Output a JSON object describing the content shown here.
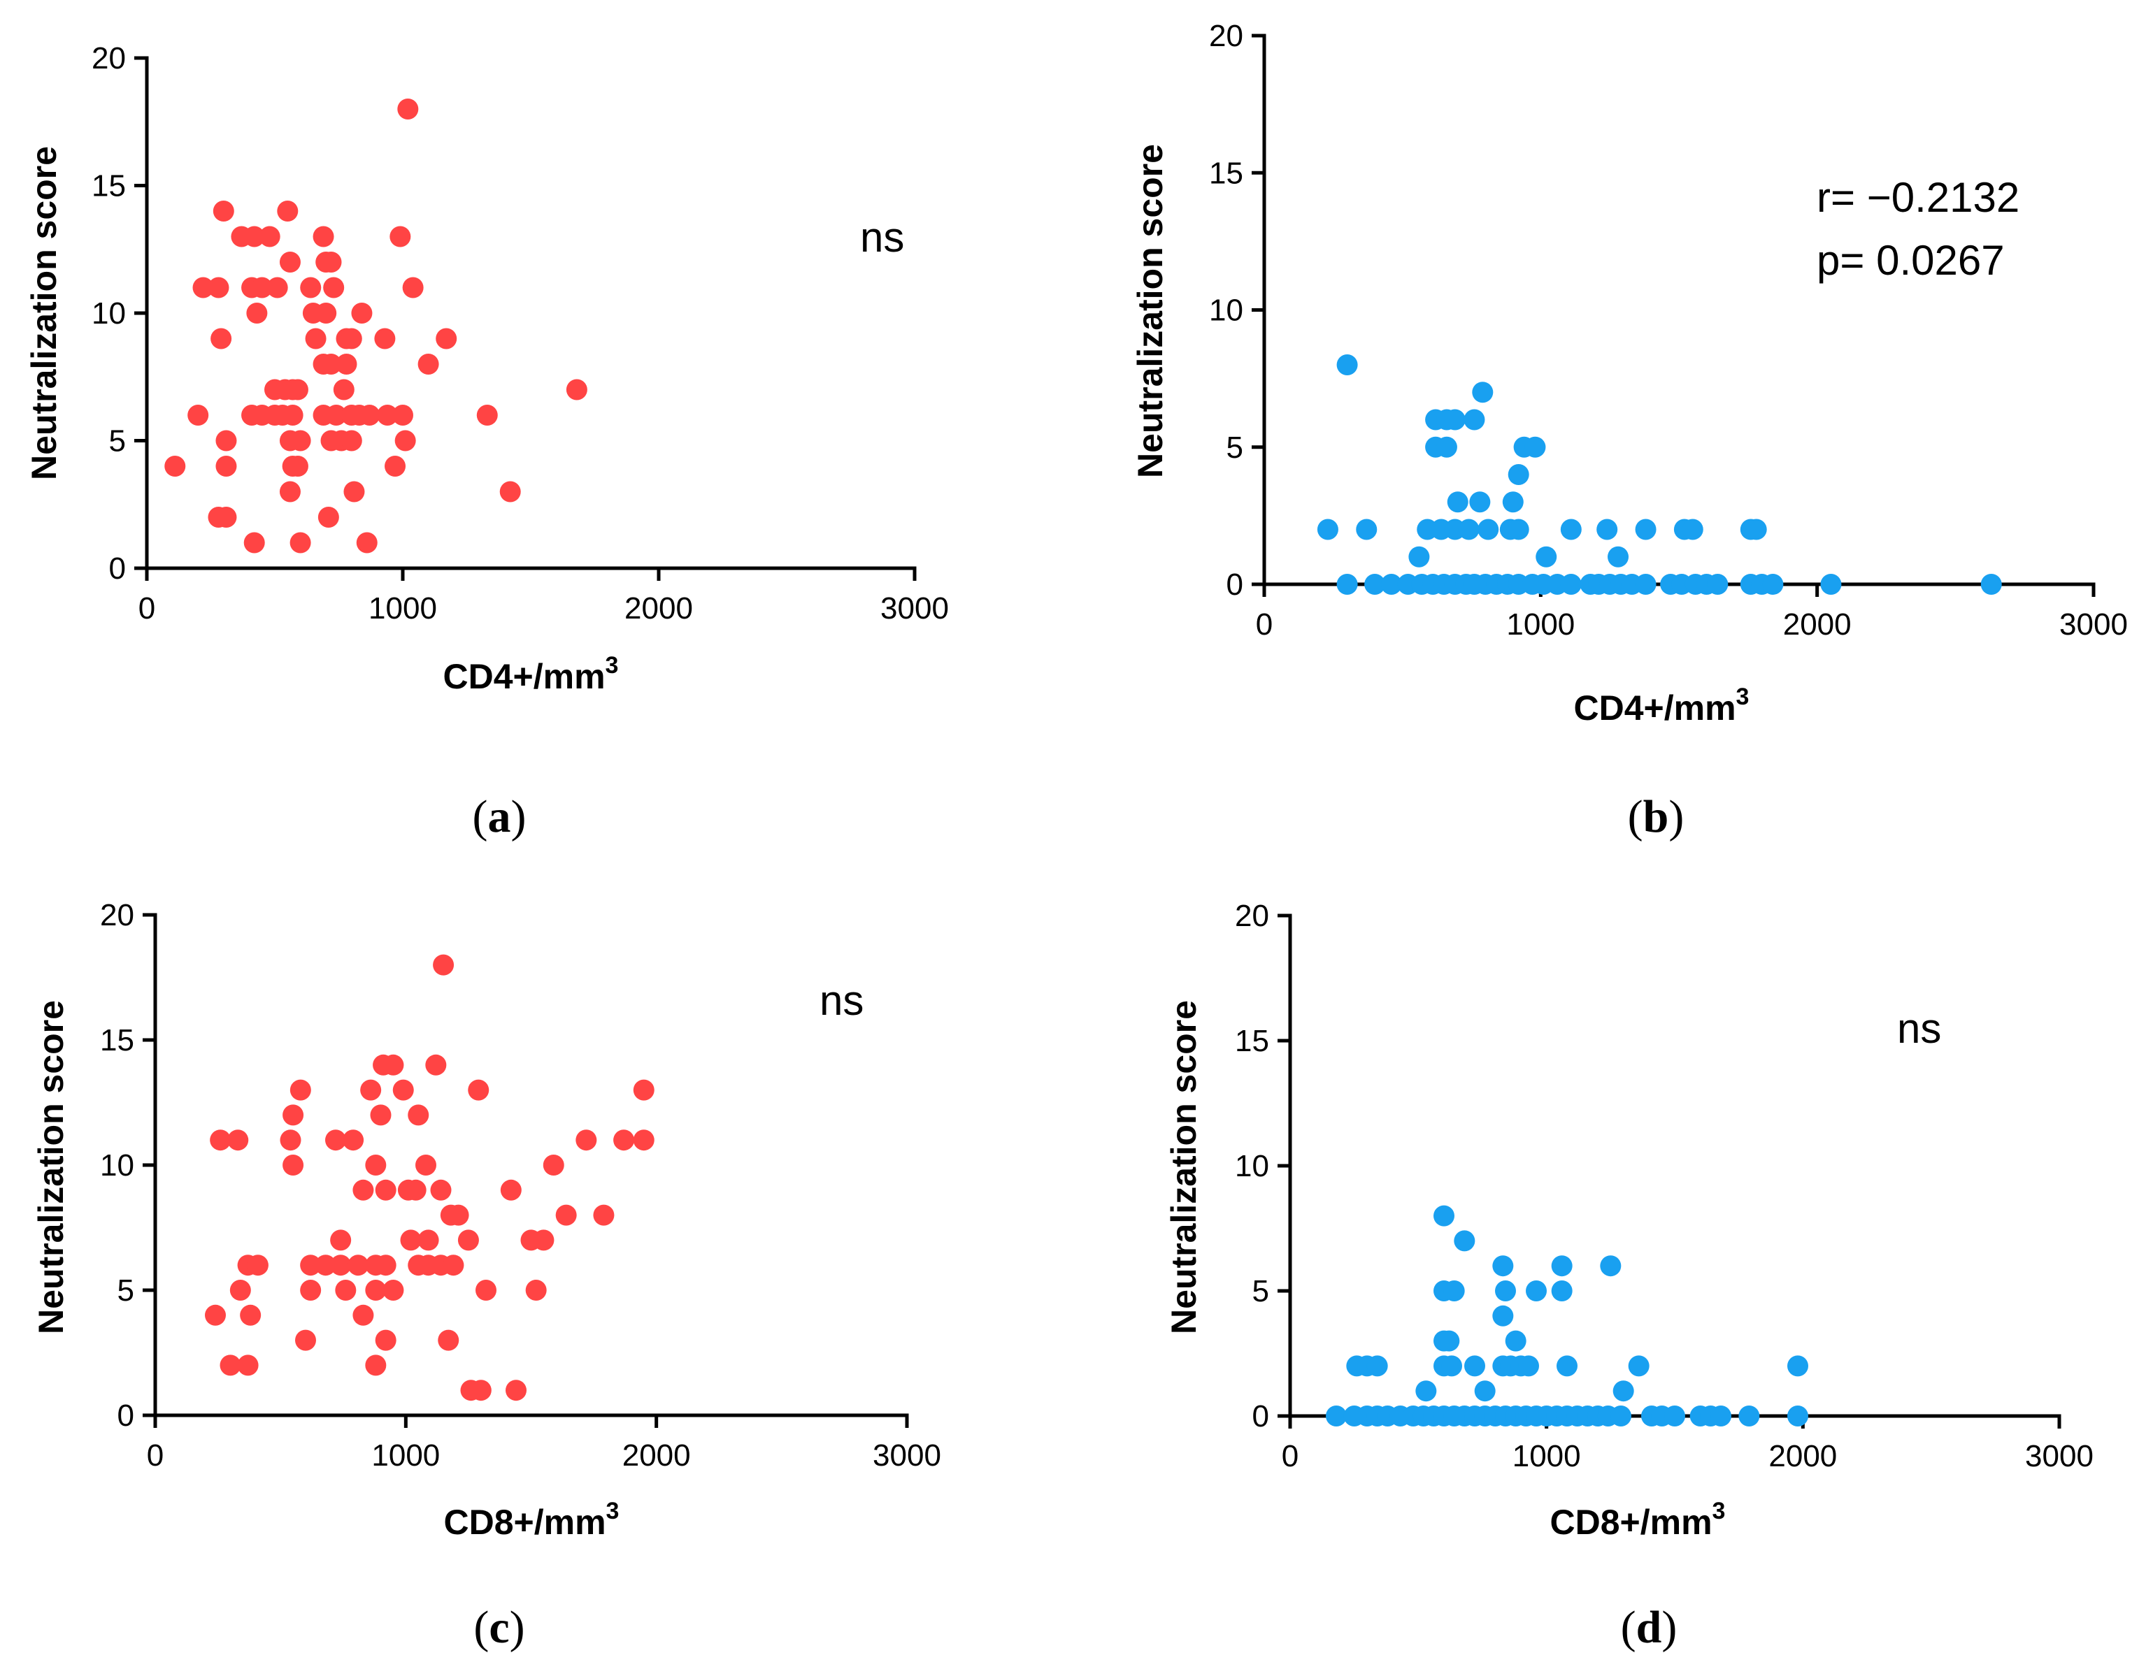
{
  "colors": {
    "red": "#ff4444",
    "blue": "#19a0f0"
  },
  "chart_data": [
    {
      "id": "a",
      "type": "scatter",
      "panel_label": "a",
      "color": "#ff4444",
      "xlabel": "CD4+/mm",
      "xlabel_sup": "3",
      "ylabel": "Neutralization score",
      "xlim": [
        0,
        3000
      ],
      "ylim": [
        0,
        20
      ],
      "xticks": [
        "0",
        "1000",
        "2000",
        "3000"
      ],
      "yticks": [
        "0",
        "5",
        "10",
        "15",
        "20"
      ],
      "annotation": [
        "ns"
      ],
      "points": [
        [
          1020,
          18
        ],
        [
          300,
          14
        ],
        [
          550,
          14
        ],
        [
          370,
          13
        ],
        [
          420,
          13
        ],
        [
          480,
          13
        ],
        [
          690,
          13
        ],
        [
          990,
          13
        ],
        [
          220,
          11
        ],
        [
          280,
          11
        ],
        [
          410,
          11
        ],
        [
          450,
          11
        ],
        [
          510,
          11
        ],
        [
          640,
          11
        ],
        [
          730,
          11
        ],
        [
          1040,
          11
        ],
        [
          560,
          12
        ],
        [
          700,
          12
        ],
        [
          720,
          12
        ],
        [
          430,
          10
        ],
        [
          650,
          10
        ],
        [
          700,
          10
        ],
        [
          840,
          10
        ],
        [
          290,
          9
        ],
        [
          660,
          9
        ],
        [
          780,
          9
        ],
        [
          800,
          9
        ],
        [
          930,
          9
        ],
        [
          1170,
          9
        ],
        [
          690,
          8
        ],
        [
          720,
          8
        ],
        [
          780,
          8
        ],
        [
          1100,
          8
        ],
        [
          1680,
          7
        ],
        [
          500,
          7
        ],
        [
          540,
          7
        ],
        [
          570,
          7
        ],
        [
          590,
          7
        ],
        [
          770,
          7
        ],
        [
          200,
          6
        ],
        [
          410,
          6
        ],
        [
          450,
          6
        ],
        [
          500,
          6
        ],
        [
          530,
          6
        ],
        [
          570,
          6
        ],
        [
          690,
          6
        ],
        [
          740,
          6
        ],
        [
          800,
          6
        ],
        [
          830,
          6
        ],
        [
          870,
          6
        ],
        [
          940,
          6
        ],
        [
          1000,
          6
        ],
        [
          1330,
          6
        ],
        [
          310,
          5
        ],
        [
          560,
          5
        ],
        [
          600,
          5
        ],
        [
          720,
          5
        ],
        [
          760,
          5
        ],
        [
          800,
          5
        ],
        [
          1010,
          5
        ],
        [
          110,
          4
        ],
        [
          310,
          4
        ],
        [
          570,
          4
        ],
        [
          590,
          4
        ],
        [
          970,
          4
        ],
        [
          560,
          3
        ],
        [
          810,
          3
        ],
        [
          1420,
          3
        ],
        [
          280,
          2
        ],
        [
          310,
          2
        ],
        [
          710,
          2
        ],
        [
          420,
          1
        ],
        [
          600,
          1
        ],
        [
          860,
          1
        ]
      ]
    },
    {
      "id": "b",
      "type": "scatter",
      "panel_label": "b",
      "color": "#19a0f0",
      "xlabel": "CD4+/mm",
      "xlabel_sup": "3",
      "ylabel": "Neutralization score",
      "xlim": [
        0,
        3000
      ],
      "ylim": [
        0,
        20
      ],
      "xticks": [
        "0",
        "1000",
        "2000",
        "3000"
      ],
      "yticks": [
        "0",
        "5",
        "10",
        "15",
        "20"
      ],
      "annotation": [
        "r= −0.2132",
        "p= 0.0267"
      ],
      "points": [
        [
          300,
          8
        ],
        [
          790,
          7
        ],
        [
          620,
          6
        ],
        [
          660,
          6
        ],
        [
          690,
          6
        ],
        [
          760,
          6
        ],
        [
          620,
          5
        ],
        [
          660,
          5
        ],
        [
          940,
          5
        ],
        [
          980,
          5
        ],
        [
          920,
          4
        ],
        [
          700,
          3
        ],
        [
          780,
          3
        ],
        [
          900,
          3
        ],
        [
          1280,
          1
        ],
        [
          1020,
          1
        ],
        [
          560,
          1
        ],
        [
          230,
          2
        ],
        [
          370,
          2
        ],
        [
          590,
          2
        ],
        [
          640,
          2
        ],
        [
          690,
          2
        ],
        [
          740,
          2
        ],
        [
          810,
          2
        ],
        [
          890,
          2
        ],
        [
          920,
          2
        ],
        [
          1110,
          2
        ],
        [
          1240,
          2
        ],
        [
          1380,
          2
        ],
        [
          1520,
          2
        ],
        [
          1550,
          2
        ],
        [
          1760,
          2
        ],
        [
          1780,
          2
        ],
        [
          300,
          0
        ],
        [
          400,
          0
        ],
        [
          460,
          0
        ],
        [
          520,
          0
        ],
        [
          570,
          0
        ],
        [
          610,
          0
        ],
        [
          650,
          0
        ],
        [
          690,
          0
        ],
        [
          730,
          0
        ],
        [
          760,
          0
        ],
        [
          800,
          0
        ],
        [
          840,
          0
        ],
        [
          880,
          0
        ],
        [
          920,
          0
        ],
        [
          970,
          0
        ],
        [
          1010,
          0
        ],
        [
          1060,
          0
        ],
        [
          1110,
          0
        ],
        [
          1180,
          0
        ],
        [
          1210,
          0
        ],
        [
          1250,
          0
        ],
        [
          1290,
          0
        ],
        [
          1330,
          0
        ],
        [
          1380,
          0
        ],
        [
          1470,
          0
        ],
        [
          1510,
          0
        ],
        [
          1560,
          0
        ],
        [
          1600,
          0
        ],
        [
          1640,
          0
        ],
        [
          1760,
          0
        ],
        [
          1800,
          0
        ],
        [
          1840,
          0
        ],
        [
          2050,
          0
        ],
        [
          2630,
          0
        ]
      ]
    },
    {
      "id": "c",
      "type": "scatter",
      "panel_label": "c",
      "color": "#ff4444",
      "xlabel": "CD8+/mm",
      "xlabel_sup": "3",
      "ylabel": "Neutralization score",
      "xlim": [
        0,
        3000
      ],
      "ylim": [
        0,
        20
      ],
      "xticks": [
        "0",
        "1000",
        "2000",
        "3000"
      ],
      "yticks": [
        "0",
        "5",
        "10",
        "15",
        "20"
      ],
      "annotation": [
        "ns"
      ],
      "points": [
        [
          1150,
          18
        ],
        [
          910,
          14
        ],
        [
          950,
          14
        ],
        [
          1120,
          14
        ],
        [
          580,
          13
        ],
        [
          860,
          13
        ],
        [
          990,
          13
        ],
        [
          1290,
          13
        ],
        [
          1950,
          13
        ],
        [
          550,
          12
        ],
        [
          900,
          12
        ],
        [
          1050,
          12
        ],
        [
          260,
          11
        ],
        [
          330,
          11
        ],
        [
          540,
          11
        ],
        [
          720,
          11
        ],
        [
          790,
          11
        ],
        [
          1720,
          11
        ],
        [
          1870,
          11
        ],
        [
          1950,
          11
        ],
        [
          550,
          10
        ],
        [
          880,
          10
        ],
        [
          1080,
          10
        ],
        [
          1590,
          10
        ],
        [
          830,
          9
        ],
        [
          920,
          9
        ],
        [
          1010,
          9
        ],
        [
          1040,
          9
        ],
        [
          1140,
          9
        ],
        [
          1420,
          9
        ],
        [
          1180,
          8
        ],
        [
          1210,
          8
        ],
        [
          1640,
          8
        ],
        [
          1790,
          8
        ],
        [
          740,
          7
        ],
        [
          1020,
          7
        ],
        [
          1090,
          7
        ],
        [
          1250,
          7
        ],
        [
          1500,
          7
        ],
        [
          1550,
          7
        ],
        [
          370,
          6
        ],
        [
          410,
          6
        ],
        [
          620,
          6
        ],
        [
          680,
          6
        ],
        [
          740,
          6
        ],
        [
          810,
          6
        ],
        [
          880,
          6
        ],
        [
          920,
          6
        ],
        [
          1050,
          6
        ],
        [
          1090,
          6
        ],
        [
          1140,
          6
        ],
        [
          1190,
          6
        ],
        [
          340,
          5
        ],
        [
          620,
          5
        ],
        [
          760,
          5
        ],
        [
          880,
          5
        ],
        [
          950,
          5
        ],
        [
          1320,
          5
        ],
        [
          1520,
          5
        ],
        [
          240,
          4
        ],
        [
          380,
          4
        ],
        [
          830,
          4
        ],
        [
          600,
          3
        ],
        [
          920,
          3
        ],
        [
          1170,
          3
        ],
        [
          300,
          2
        ],
        [
          370,
          2
        ],
        [
          880,
          2
        ],
        [
          1260,
          1
        ],
        [
          1300,
          1
        ],
        [
          1440,
          1
        ]
      ]
    },
    {
      "id": "d",
      "type": "scatter",
      "panel_label": "d",
      "color": "#19a0f0",
      "xlabel": "CD8+/mm",
      "xlabel_sup": "3",
      "ylabel": "Neutralization score",
      "xlim": [
        0,
        3000
      ],
      "ylim": [
        0,
        20
      ],
      "xticks": [
        "0",
        "1000",
        "2000",
        "3000"
      ],
      "yticks": [
        "0",
        "5",
        "10",
        "15",
        "20"
      ],
      "annotation": [
        "ns"
      ],
      "points": [
        [
          600,
          8
        ],
        [
          680,
          7
        ],
        [
          830,
          6
        ],
        [
          1060,
          6
        ],
        [
          1250,
          6
        ],
        [
          600,
          5
        ],
        [
          640,
          5
        ],
        [
          840,
          5
        ],
        [
          960,
          5
        ],
        [
          1060,
          5
        ],
        [
          830,
          4
        ],
        [
          880,
          3
        ],
        [
          600,
          3
        ],
        [
          620,
          3
        ],
        [
          260,
          2
        ],
        [
          300,
          2
        ],
        [
          340,
          2
        ],
        [
          600,
          2
        ],
        [
          630,
          2
        ],
        [
          720,
          2
        ],
        [
          830,
          2
        ],
        [
          860,
          2
        ],
        [
          900,
          2
        ],
        [
          930,
          2
        ],
        [
          1080,
          2
        ],
        [
          1360,
          2
        ],
        [
          1980,
          2
        ],
        [
          760,
          1
        ],
        [
          530,
          1
        ],
        [
          1300,
          1
        ],
        [
          180,
          0
        ],
        [
          250,
          0
        ],
        [
          300,
          0
        ],
        [
          340,
          0
        ],
        [
          380,
          0
        ],
        [
          430,
          0
        ],
        [
          480,
          0
        ],
        [
          520,
          0
        ],
        [
          560,
          0
        ],
        [
          600,
          0
        ],
        [
          640,
          0
        ],
        [
          680,
          0
        ],
        [
          720,
          0
        ],
        [
          760,
          0
        ],
        [
          800,
          0
        ],
        [
          840,
          0
        ],
        [
          880,
          0
        ],
        [
          920,
          0
        ],
        [
          960,
          0
        ],
        [
          1000,
          0
        ],
        [
          1040,
          0
        ],
        [
          1080,
          0
        ],
        [
          1120,
          0
        ],
        [
          1160,
          0
        ],
        [
          1200,
          0
        ],
        [
          1240,
          0
        ],
        [
          1290,
          0
        ],
        [
          1410,
          0
        ],
        [
          1450,
          0
        ],
        [
          1500,
          0
        ],
        [
          1600,
          0
        ],
        [
          1640,
          0
        ],
        [
          1680,
          0
        ],
        [
          1790,
          0
        ],
        [
          1980,
          0
        ]
      ]
    }
  ]
}
